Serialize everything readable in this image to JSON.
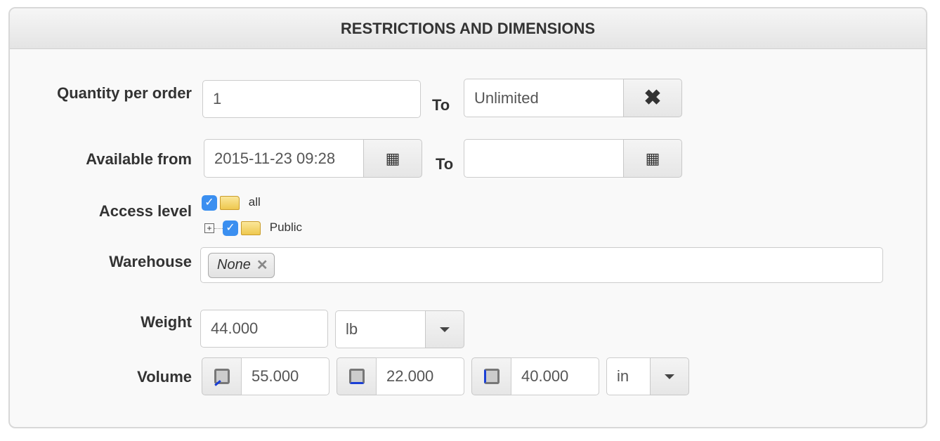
{
  "panel": {
    "title": "RESTRICTIONS AND DIMENSIONS"
  },
  "quantity": {
    "label": "Quantity per order",
    "from": "1",
    "to_label": "To",
    "to_placeholder": "Unlimited",
    "clear_icon": "close-icon"
  },
  "available": {
    "label": "Available from",
    "from": "2015-11-23 09:28",
    "to_label": "To",
    "to": "",
    "calendar_icon": "calendar-icon"
  },
  "access": {
    "label": "Access level",
    "items": [
      {
        "label": "all",
        "checked": true
      },
      {
        "label": "Public",
        "checked": true
      }
    ]
  },
  "warehouse": {
    "label": "Warehouse",
    "tags": [
      "None"
    ]
  },
  "weight": {
    "label": "Weight",
    "value": "44.000",
    "unit": "lb"
  },
  "volume": {
    "label": "Volume",
    "length": "55.000",
    "width": "22.000",
    "height": "40.000",
    "unit": "in"
  },
  "colors": {
    "checkbox": "#3b8ff0",
    "dimension_highlight": "#1a3fd6"
  }
}
